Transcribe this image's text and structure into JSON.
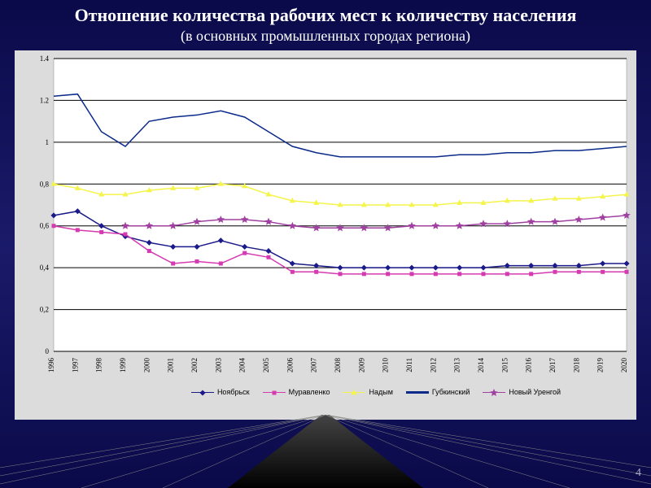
{
  "title": "Отношение количества рабочих мест к количеству населения",
  "subtitle": "(в основных промышленных городах региона)",
  "page_number": "4",
  "chart": {
    "type": "line",
    "background_color": "#dcdcdc",
    "plot_background": "#ffffff",
    "grid_color": "#000000",
    "x_categories": [
      "1996",
      "1997",
      "1998",
      "1999",
      "2000",
      "2001",
      "2002",
      "2003",
      "2004",
      "2005",
      "2006",
      "2007",
      "2008",
      "2009",
      "2010",
      "2011",
      "2012",
      "2013",
      "2014",
      "2015",
      "2016",
      "2017",
      "2018",
      "2019",
      "2020"
    ],
    "y_ticks": [
      0,
      0.2,
      0.4,
      0.6,
      0.8,
      1,
      1.2,
      1.4
    ],
    "ylim": [
      0,
      1.4
    ],
    "tick_font_size": 9,
    "x_label_rotation": -90,
    "series": [
      {
        "name": "Ноябрьск",
        "color": "#1a1a8a",
        "marker": "diamond",
        "marker_size": 5,
        "line_width": 1.2,
        "data": [
          0.65,
          0.67,
          0.6,
          0.55,
          0.52,
          0.5,
          0.5,
          0.53,
          0.5,
          0.48,
          0.42,
          0.41,
          0.4,
          0.4,
          0.4,
          0.4,
          0.4,
          0.4,
          0.4,
          0.41,
          0.41,
          0.41,
          0.41,
          0.42,
          0.42
        ]
      },
      {
        "name": "Муравленко",
        "color": "#d63ab0",
        "marker": "square",
        "marker_size": 5,
        "line_width": 1.2,
        "data": [
          0.6,
          0.58,
          0.57,
          0.56,
          0.48,
          0.42,
          0.43,
          0.42,
          0.47,
          0.45,
          0.38,
          0.38,
          0.37,
          0.37,
          0.37,
          0.37,
          0.37,
          0.37,
          0.37,
          0.37,
          0.37,
          0.38,
          0.38,
          0.38,
          0.38
        ]
      },
      {
        "name": "Надым",
        "color": "#f4f44a",
        "marker": "triangle",
        "marker_size": 6,
        "line_width": 1.2,
        "data": [
          0.8,
          0.78,
          0.75,
          0.75,
          0.77,
          0.78,
          0.78,
          0.8,
          0.79,
          0.75,
          0.72,
          0.71,
          0.7,
          0.7,
          0.7,
          0.7,
          0.7,
          0.71,
          0.71,
          0.72,
          0.72,
          0.73,
          0.73,
          0.74,
          0.75
        ]
      },
      {
        "name": "Губкинский",
        "color": "#0a2a8a",
        "marker": "none",
        "marker_size": 0,
        "line_width": 3.5,
        "data": [
          1.22,
          1.23,
          1.05,
          0.98,
          1.1,
          1.12,
          1.13,
          1.15,
          1.12,
          1.05,
          0.98,
          0.95,
          0.93,
          0.93,
          0.93,
          0.93,
          0.93,
          0.94,
          0.94,
          0.95,
          0.95,
          0.96,
          0.96,
          0.97,
          0.98
        ]
      },
      {
        "name": "Новый Уренгой",
        "color": "#a040a0",
        "marker": "star",
        "marker_size": 5,
        "line_width": 1.2,
        "data": [
          null,
          null,
          null,
          0.6,
          0.6,
          0.6,
          0.62,
          0.63,
          0.63,
          0.62,
          0.6,
          0.59,
          0.59,
          0.59,
          0.59,
          0.6,
          0.6,
          0.6,
          0.61,
          0.61,
          0.62,
          0.62,
          0.63,
          0.64,
          0.65
        ]
      }
    ]
  }
}
